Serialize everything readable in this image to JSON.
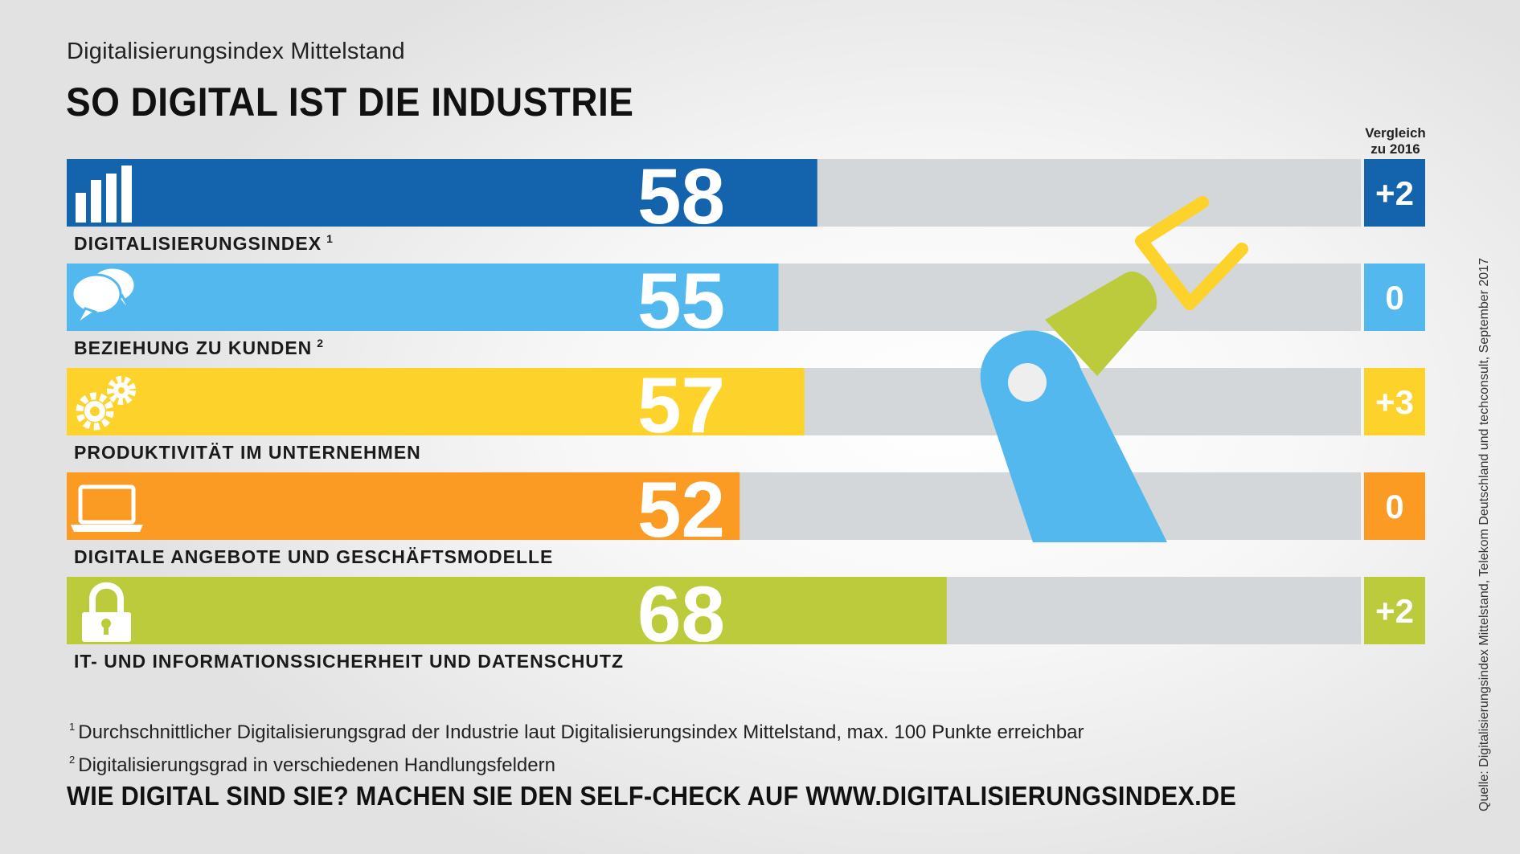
{
  "header": {
    "subtitle": "Digitalisierungsindex Mittelstand",
    "title": "SO DIGITAL IST DIE INDUSTRIE"
  },
  "compare_header": {
    "line1": "Vergleich",
    "line2": "zu 2016"
  },
  "chart_data": {
    "type": "bar",
    "orientation": "horizontal",
    "max": 100,
    "bars": [
      {
        "label": "DIGITALISIERUNGSINDEX",
        "footnote": "1",
        "value": 58,
        "delta": "+2",
        "icon": "bar-chart-icon",
        "color": "#1464ad"
      },
      {
        "label": "BEZIEHUNG ZU KUNDEN",
        "footnote": "2",
        "value": 55,
        "delta": "0",
        "icon": "speech-bubbles-icon",
        "color": "#52b8ee"
      },
      {
        "label": "PRODUKTIVITÄT IM UNTERNEHMEN",
        "footnote": "",
        "value": 57,
        "delta": "+3",
        "icon": "gears-icon",
        "color": "#fdd22b"
      },
      {
        "label": "DIGITALE ANGEBOTE UND GESCHÄFTSMODELLE",
        "footnote": "",
        "value": 52,
        "delta": "0",
        "icon": "laptop-icon",
        "color": "#fc9b24"
      },
      {
        "label": "IT- UND INFORMATIONSSICHERHEIT UND DATENSCHUTZ",
        "footnote": "",
        "value": 68,
        "delta": "+2",
        "icon": "padlock-icon",
        "color": "#bccb3c"
      }
    ],
    "track_color": "#d3d7da"
  },
  "footnotes": [
    {
      "mark": "1",
      "text": "Durchschnittlicher Digitalisierungsgrad der Industrie laut Digitalisierungsindex Mittelstand, max. 100 Punkte erreichbar"
    },
    {
      "mark": "2",
      "text": "Digitalisierungsgrad in verschiedenen Handlungsfeldern"
    }
  ],
  "cta": "WIE DIGITAL SIND SIE? MACHEN SIE DEN SELF-CHECK AUF WWW.DIGITALISIERUNGSINDEX.DE",
  "source": "Quelle: Digitalisierungsindex Mittelstand, Telekom Deutschland und techconsult, September 2017"
}
